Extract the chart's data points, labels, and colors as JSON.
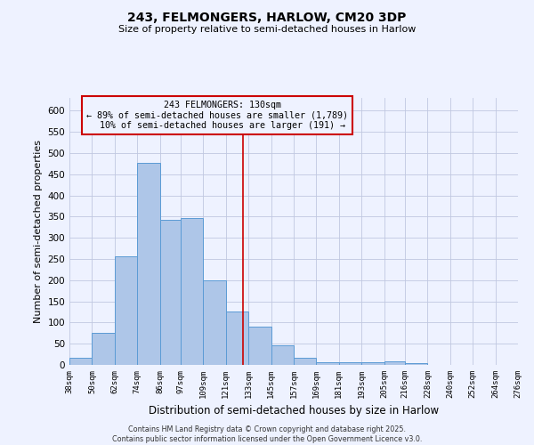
{
  "title_line1": "243, FELMONGERS, HARLOW, CM20 3DP",
  "title_line2": "Size of property relative to semi-detached houses in Harlow",
  "xlabel": "Distribution of semi-detached houses by size in Harlow",
  "ylabel": "Number of semi-detached properties",
  "footer": "Contains HM Land Registry data © Crown copyright and database right 2025.\nContains public sector information licensed under the Open Government Licence v3.0.",
  "bins": [
    38,
    50,
    62,
    74,
    86,
    97,
    109,
    121,
    133,
    145,
    157,
    169,
    181,
    193,
    205,
    216,
    228,
    240,
    252,
    264,
    276
  ],
  "counts": [
    16,
    75,
    256,
    476,
    343,
    347,
    199,
    127,
    90,
    46,
    17,
    7,
    6,
    7,
    8,
    5,
    1,
    1,
    0,
    1
  ],
  "property_size": 130,
  "property_name": "243 FELMONGERS",
  "pct_smaller": 89,
  "count_smaller": 1789,
  "pct_larger": 10,
  "count_larger": 191,
  "bar_color": "#aec6e8",
  "bar_edge_color": "#5b9bd5",
  "annotation_box_color": "#cc0000",
  "vline_color": "#cc0000",
  "bg_color": "#eef2ff",
  "grid_color": "#c0c8e0",
  "ylim": [
    0,
    630
  ],
  "yticks": [
    0,
    50,
    100,
    150,
    200,
    250,
    300,
    350,
    400,
    450,
    500,
    550,
    600
  ]
}
